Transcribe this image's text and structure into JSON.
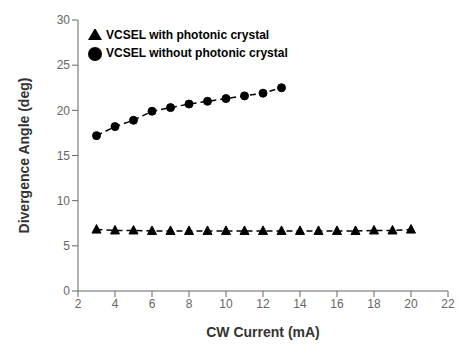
{
  "chart_data": {
    "type": "line",
    "xlabel": "CW Current (mA)",
    "ylabel": "Divergence Angle (deg)",
    "xlim": [
      2,
      22
    ],
    "ylim": [
      0,
      30
    ],
    "xticks": [
      2,
      4,
      6,
      8,
      10,
      12,
      14,
      16,
      18,
      20,
      22
    ],
    "yticks": [
      0,
      5,
      10,
      15,
      20,
      25,
      30
    ],
    "grid": false,
    "legend": "upper left",
    "series": [
      {
        "name": "VCSEL with photonic crystal",
        "color": "#000000",
        "marker": "triangle",
        "line_style": "dashed",
        "x": [
          3,
          4,
          5,
          6,
          7,
          8,
          9,
          10,
          11,
          12,
          13,
          14,
          15,
          16,
          17,
          18,
          19,
          20
        ],
        "values": [
          6.8,
          6.7,
          6.7,
          6.65,
          6.65,
          6.65,
          6.65,
          6.65,
          6.65,
          6.65,
          6.65,
          6.65,
          6.65,
          6.65,
          6.65,
          6.7,
          6.7,
          6.8
        ]
      },
      {
        "name": "VCSEL without photonic crystal",
        "color": "#000000",
        "marker": "circle",
        "line_style": "dashed",
        "x": [
          3,
          4,
          5,
          6,
          7,
          8,
          9,
          10,
          11,
          12,
          13
        ],
        "values": [
          17.2,
          18.2,
          18.9,
          19.9,
          20.3,
          20.7,
          21.0,
          21.3,
          21.6,
          21.9,
          22.5
        ]
      }
    ]
  }
}
